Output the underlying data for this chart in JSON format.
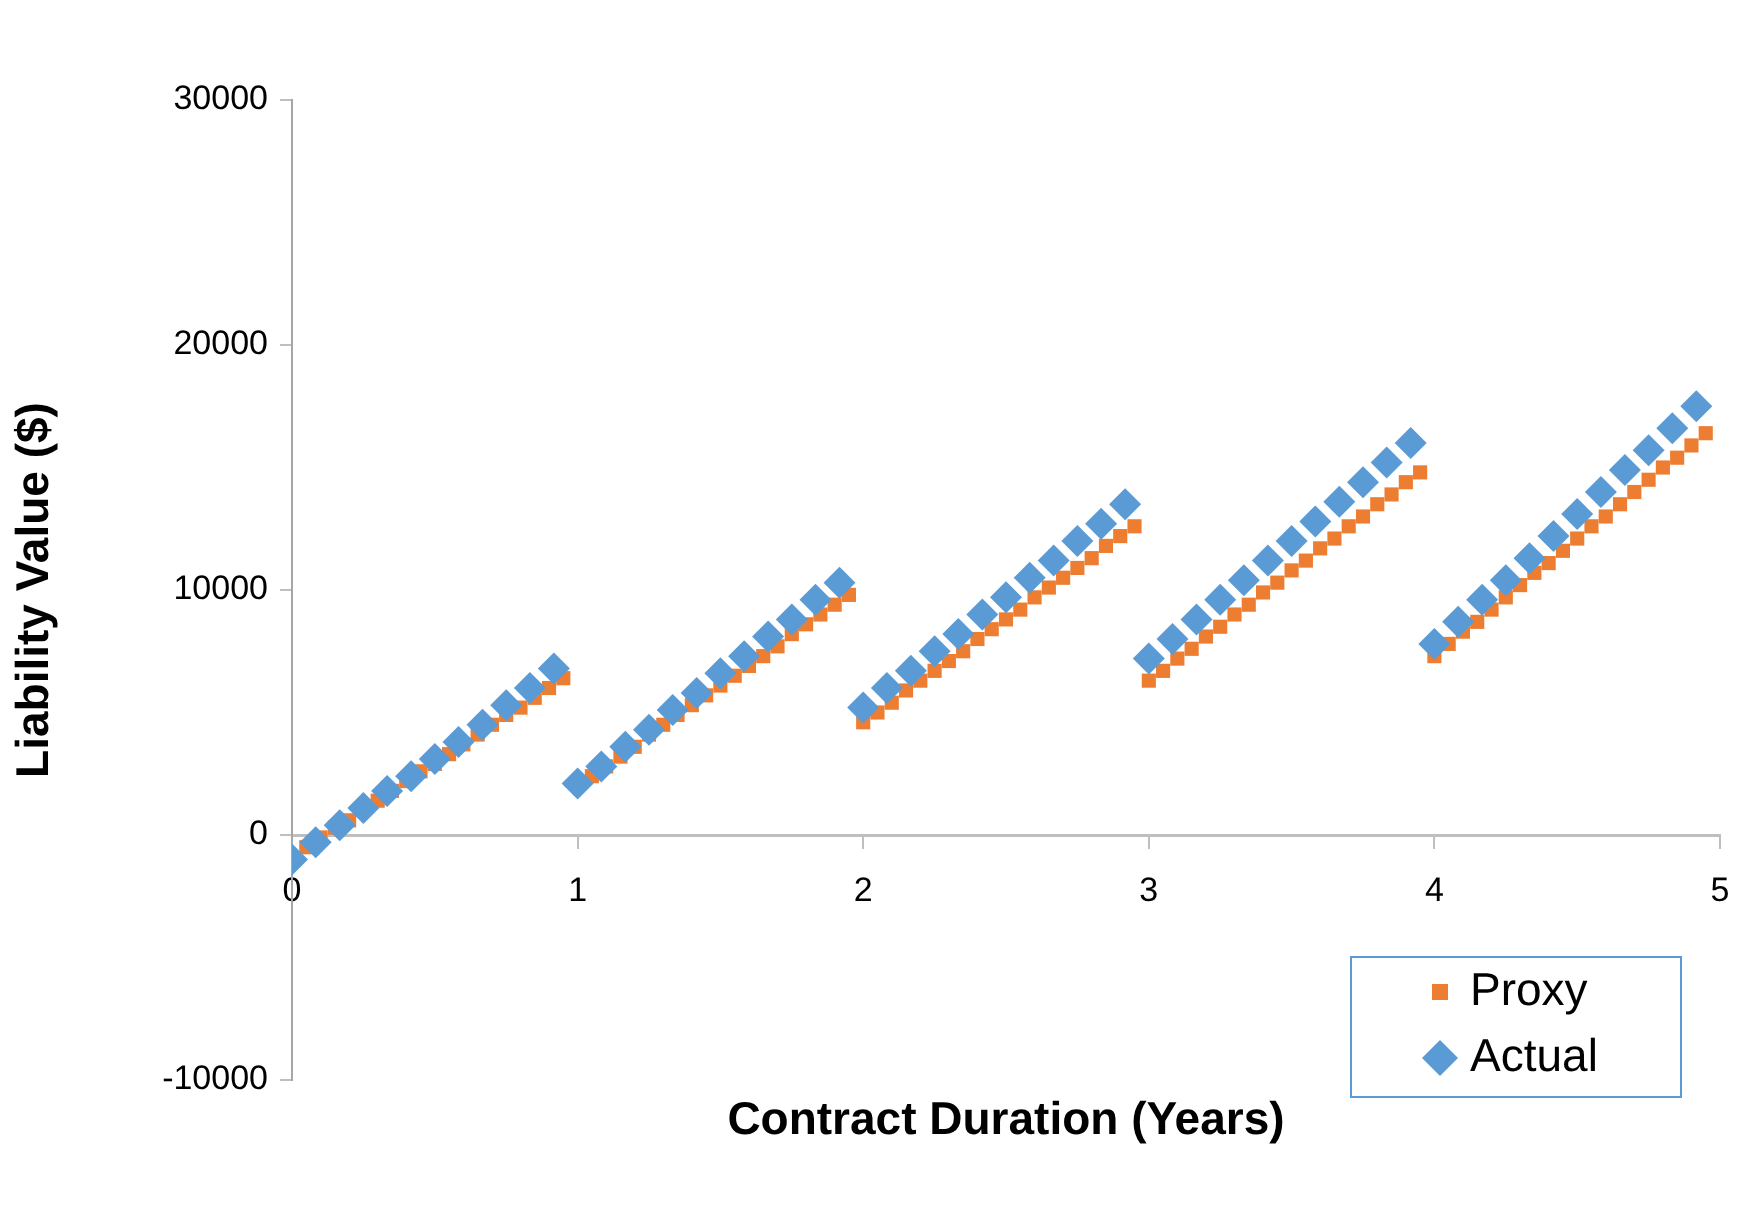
{
  "chart_data": {
    "type": "scatter",
    "xlabel": "Contract Duration (Years)",
    "ylabel": "Liability Value ($)",
    "xlim": [
      0,
      5
    ],
    "xticks": [
      0,
      1,
      2,
      3,
      4,
      5
    ],
    "ylim": [
      -10000,
      30000
    ],
    "yticks": [
      -10000,
      0,
      10000,
      20000,
      30000
    ],
    "grid": false,
    "legend": "bottom right",
    "series": [
      {
        "name": "Proxy",
        "color": "#ed7d31",
        "marker": "square",
        "x": [
          0.05,
          0.1,
          0.15,
          0.2,
          0.3,
          0.35,
          0.4,
          0.45,
          0.5,
          0.55,
          0.6,
          0.65,
          0.7,
          0.75,
          0.8,
          0.85,
          0.9,
          0.95,
          1.05,
          1.1,
          1.15,
          1.2,
          1.25,
          1.3,
          1.35,
          1.4,
          1.45,
          1.5,
          1.55,
          1.6,
          1.65,
          1.7,
          1.75,
          1.8,
          1.85,
          1.9,
          1.95,
          2,
          2.05,
          2.1,
          2.15,
          2.2,
          2.25,
          2.3,
          2.35,
          2.4,
          2.45,
          2.5,
          2.55,
          2.6,
          2.65,
          2.7,
          2.75,
          2.8,
          2.85,
          2.9,
          2.95,
          3,
          3.05,
          3.1,
          3.15,
          3.2,
          3.25,
          3.3,
          3.35,
          3.4,
          3.45,
          3.5,
          3.55,
          3.6,
          3.65,
          3.7,
          3.75,
          3.8,
          3.85,
          3.9,
          3.95,
          4,
          4.05,
          4.1,
          4.15,
          4.2,
          4.25,
          4.3,
          4.35,
          4.4,
          4.45,
          4.5,
          4.55,
          4.6,
          4.65,
          4.7,
          4.75,
          4.8,
          4.85,
          4.9,
          4.95
        ],
        "values": [
          -500,
          -100,
          300,
          600,
          1400,
          1800,
          2200,
          2600,
          2900,
          3300,
          3700,
          4100,
          4500,
          4900,
          5200,
          5600,
          6000,
          6400,
          2400,
          2800,
          3200,
          3600,
          4100,
          4500,
          4900,
          5300,
          5700,
          6100,
          6500,
          6900,
          7300,
          7700,
          8200,
          8600,
          9000,
          9400,
          9800,
          4600,
          5000,
          5400,
          5900,
          6300,
          6700,
          7100,
          7500,
          8000,
          8400,
          8800,
          9200,
          9700,
          10100,
          10500,
          10900,
          11300,
          11800,
          12200,
          12600,
          6300,
          6700,
          7200,
          7600,
          8100,
          8500,
          9000,
          9400,
          9900,
          10300,
          10800,
          11200,
          11700,
          12100,
          12600,
          13000,
          13500,
          13900,
          14400,
          14800,
          7300,
          7800,
          8300,
          8700,
          9200,
          9700,
          10200,
          10700,
          11100,
          11600,
          12100,
          12600,
          13000,
          13500,
          14000,
          14500,
          15000,
          15400,
          15900,
          16400
        ]
      },
      {
        "name": "Actual",
        "color": "#5b9bd5",
        "marker": "diamond",
        "x": [
          0,
          0.083,
          0.167,
          0.25,
          0.333,
          0.417,
          0.5,
          0.583,
          0.667,
          0.75,
          0.833,
          0.917,
          1,
          1.083,
          1.167,
          1.25,
          1.333,
          1.417,
          1.5,
          1.583,
          1.667,
          1.75,
          1.833,
          1.917,
          2,
          2.083,
          2.167,
          2.25,
          2.333,
          2.417,
          2.5,
          2.583,
          2.667,
          2.75,
          2.833,
          2.917,
          3,
          3.083,
          3.167,
          3.25,
          3.333,
          3.417,
          3.5,
          3.583,
          3.667,
          3.75,
          3.833,
          3.917,
          4,
          4.083,
          4.167,
          4.25,
          4.333,
          4.417,
          4.5,
          4.583,
          4.667,
          4.75,
          4.833,
          4.917
        ],
        "values": [
          -1000,
          -300,
          400,
          1100,
          1800,
          2400,
          3100,
          3800,
          4500,
          5300,
          6000,
          6800,
          2100,
          2800,
          3600,
          4300,
          5100,
          5800,
          6600,
          7300,
          8100,
          8800,
          9600,
          10300,
          5200,
          6000,
          6700,
          7500,
          8200,
          9000,
          9700,
          10500,
          11200,
          12000,
          12700,
          13500,
          7200,
          8000,
          8800,
          9600,
          10400,
          11200,
          12000,
          12800,
          13600,
          14400,
          15200,
          16000,
          7800,
          8700,
          9600,
          10400,
          11300,
          12200,
          13100,
          14000,
          14900,
          15700,
          16600,
          17500
        ]
      }
    ]
  }
}
